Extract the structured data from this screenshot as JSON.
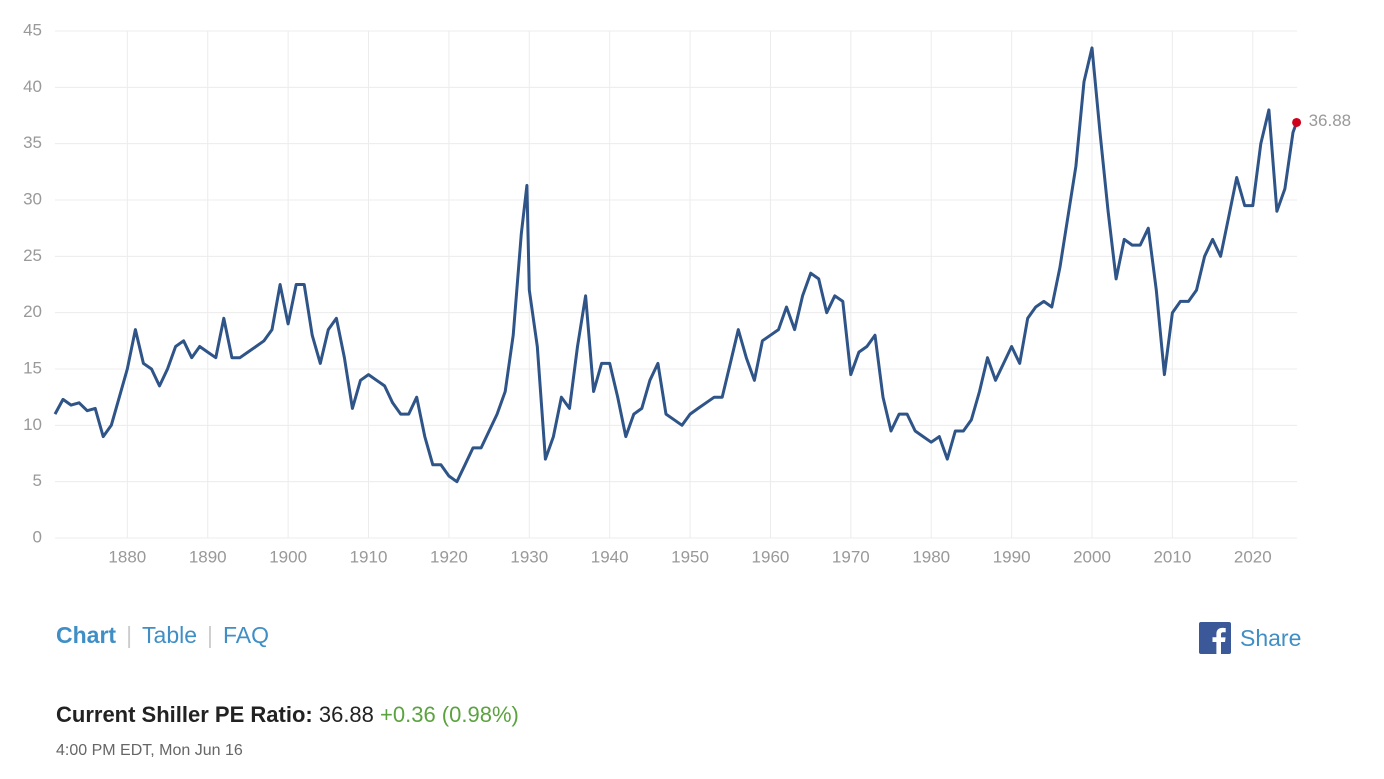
{
  "chart_data": {
    "type": "line",
    "x": [
      1871,
      1872,
      1873,
      1874,
      1875,
      1876,
      1877,
      1878,
      1879,
      1880,
      1881,
      1882,
      1883,
      1884,
      1885,
      1886,
      1887,
      1888,
      1889,
      1890,
      1891,
      1892,
      1893,
      1894,
      1895,
      1896,
      1897,
      1898,
      1899,
      1900,
      1901,
      1902,
      1903,
      1904,
      1905,
      1906,
      1907,
      1908,
      1909,
      1910,
      1911,
      1912,
      1913,
      1914,
      1915,
      1916,
      1917,
      1918,
      1919,
      1920,
      1921,
      1922,
      1923,
      1924,
      1925,
      1926,
      1927,
      1928,
      1929,
      1929.7,
      1930,
      1931,
      1932,
      1933,
      1934,
      1935,
      1936,
      1937,
      1938,
      1939,
      1940,
      1941,
      1942,
      1943,
      1944,
      1945,
      1946,
      1947,
      1948,
      1949,
      1950,
      1951,
      1952,
      1953,
      1954,
      1955,
      1956,
      1957,
      1958,
      1959,
      1960,
      1961,
      1962,
      1963,
      1964,
      1965,
      1966,
      1967,
      1968,
      1969,
      1970,
      1971,
      1972,
      1973,
      1974,
      1975,
      1976,
      1977,
      1978,
      1979,
      1980,
      1981,
      1982,
      1983,
      1984,
      1985,
      1986,
      1987,
      1988,
      1989,
      1990,
      1991,
      1992,
      1993,
      1994,
      1995,
      1996,
      1997,
      1998,
      1999,
      2000,
      2001,
      2002,
      2003,
      2004,
      2005,
      2006,
      2007,
      2008,
      2009,
      2010,
      2011,
      2012,
      2013,
      2014,
      2015,
      2016,
      2017,
      2018,
      2019,
      2020,
      2021,
      2022,
      2023,
      2024,
      2025,
      2025.45
    ],
    "series": [
      {
        "color": "#2f5488",
        "values": [
          11,
          12.3,
          11.8,
          12,
          11.3,
          11.5,
          9,
          10,
          12.5,
          15,
          18.5,
          15.5,
          15,
          13.5,
          15,
          17,
          17.5,
          16,
          17,
          16.5,
          16,
          19.5,
          16,
          16,
          16.5,
          17,
          17.5,
          18.5,
          22.5,
          19,
          22.5,
          22.5,
          18,
          15.5,
          18.5,
          19.5,
          16,
          11.5,
          14,
          14.5,
          14,
          13.5,
          12,
          11,
          11,
          12.5,
          9,
          6.5,
          6.5,
          5.5,
          5,
          6.5,
          8,
          8,
          9.5,
          11,
          13,
          18,
          27,
          31.3,
          22,
          17,
          7,
          9,
          12.5,
          11.5,
          17,
          21.5,
          13,
          15.5,
          15.5,
          12.5,
          9,
          11,
          11.5,
          14,
          15.5,
          11,
          10.5,
          10,
          11,
          11.5,
          12,
          12.5,
          12.5,
          15.5,
          18.5,
          16,
          14,
          17.5,
          18,
          18.5,
          20.5,
          18.5,
          21.5,
          23.5,
          23,
          20,
          21.5,
          21,
          14.5,
          16.5,
          17,
          18,
          12.5,
          9.5,
          11,
          11,
          9.5,
          9,
          8.5,
          9,
          7,
          9.5,
          9.5,
          10.5,
          13,
          16,
          14,
          15.5,
          17,
          15.5,
          19.5,
          20.5,
          21,
          20.5,
          24,
          28.5,
          33,
          40.5,
          43.5,
          36,
          29,
          23,
          26.5,
          26,
          26,
          27.5,
          22,
          14.5,
          20,
          21,
          21,
          22,
          25,
          26.5,
          25,
          28.5,
          32,
          29.5,
          29.5,
          35,
          38,
          29,
          31,
          36,
          36.88
        ]
      }
    ],
    "marker_color": "#d0021b",
    "xlim": [
      1871,
      2025.5
    ],
    "ylim": [
      0,
      45
    ],
    "xticks": [
      1880,
      1890,
      1900,
      1910,
      1920,
      1930,
      1940,
      1950,
      1960,
      1970,
      1980,
      1990,
      2000,
      2010,
      2020
    ],
    "yticks": [
      0,
      5,
      10,
      15,
      20,
      25,
      30,
      35,
      40,
      45
    ],
    "grid": true
  },
  "nav": {
    "tabs": [
      "Chart",
      "Table",
      "FAQ"
    ],
    "share": "Share"
  },
  "current": {
    "label": "Current Shiller PE Ratio:",
    "value": "36.88",
    "change": "+0.36 (0.98%)",
    "time": "4:00 PM EDT, Mon Jun 16"
  }
}
